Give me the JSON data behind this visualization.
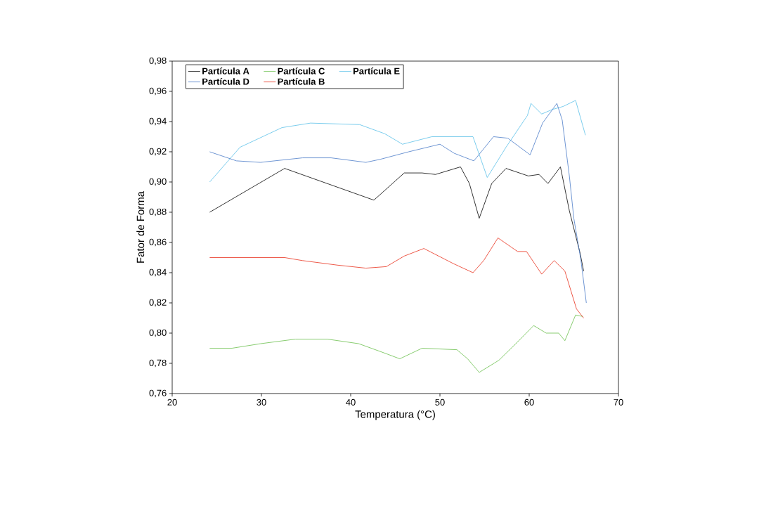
{
  "chart_data": {
    "type": "line",
    "xlabel": "Temperatura (°C)",
    "ylabel": "Fator de Forma",
    "xlim": [
      20,
      70
    ],
    "xticks": [
      20,
      30,
      40,
      50,
      60,
      70
    ],
    "ylim": [
      0.76,
      0.98
    ],
    "yticks": [
      {
        "value": 0.76,
        "label": "0,76"
      },
      {
        "value": 0.78,
        "label": "0,78"
      },
      {
        "value": 0.8,
        "label": "0,80"
      },
      {
        "value": 0.82,
        "label": "0,82"
      },
      {
        "value": 0.84,
        "label": "0,84"
      },
      {
        "value": 0.86,
        "label": "0,86"
      },
      {
        "value": 0.88,
        "label": "0,88"
      },
      {
        "value": 0.9,
        "label": "0,90"
      },
      {
        "value": 0.92,
        "label": "0,92"
      },
      {
        "value": 0.94,
        "label": "0,94"
      },
      {
        "value": 0.96,
        "label": "0,96"
      },
      {
        "value": 0.98,
        "label": "0,98"
      }
    ],
    "legend": "top left",
    "grid": false,
    "marker": "none",
    "line_style": "solid",
    "series": [
      {
        "name": "Partícula A",
        "color": "#000000",
        "x": [
          24.2,
          32.6,
          42.6,
          46,
          48,
          49.5,
          52.3,
          53.3,
          54.4,
          55.8,
          57.4,
          59.9,
          61.1,
          62.1,
          63.5,
          64.5,
          65.7,
          66.1
        ],
        "values": [
          0.88,
          0.909,
          0.888,
          0.906,
          0.906,
          0.905,
          0.91,
          0.899,
          0.876,
          0.899,
          0.909,
          0.904,
          0.905,
          0.899,
          0.91,
          0.881,
          0.853,
          0.841
        ]
      },
      {
        "name": "Partícula C",
        "color": "#6abf4b",
        "x": [
          24.2,
          26.7,
          29.9,
          33.8,
          37.4,
          40.9,
          43.7,
          45.5,
          48,
          51.9,
          53.1,
          54.4,
          56.6,
          58.5,
          60.5,
          61.9,
          63.3,
          64,
          65.2,
          66
        ],
        "values": [
          0.79,
          0.79,
          0.793,
          0.796,
          0.796,
          0.793,
          0.787,
          0.783,
          0.79,
          0.789,
          0.783,
          0.774,
          0.782,
          0.793,
          0.805,
          0.8,
          0.8,
          0.795,
          0.812,
          0.811
        ]
      },
      {
        "name": "Partícula E",
        "color": "#5bc0e8",
        "x": [
          24.2,
          27.6,
          32.3,
          35.5,
          41,
          43.8,
          45.8,
          49.1,
          53.7,
          55.3,
          57.4,
          59.8,
          60.2,
          61.4,
          62.6,
          63.8,
          65.2,
          66.3
        ],
        "values": [
          0.9,
          0.923,
          0.936,
          0.939,
          0.938,
          0.932,
          0.925,
          0.93,
          0.93,
          0.903,
          0.923,
          0.944,
          0.952,
          0.945,
          0.948,
          0.95,
          0.954,
          0.931
        ]
      },
      {
        "name": "Partícula D",
        "color": "#4a7bc8",
        "x": [
          24.2,
          27.2,
          29.9,
          34.6,
          37.8,
          41.7,
          43.3,
          46.5,
          50,
          51.6,
          53.8,
          56,
          57.6,
          60.1,
          61.5,
          63.1,
          63.7,
          64.5,
          65,
          65.8,
          66.4
        ],
        "values": [
          0.92,
          0.914,
          0.913,
          0.916,
          0.916,
          0.913,
          0.915,
          0.92,
          0.925,
          0.919,
          0.914,
          0.93,
          0.929,
          0.918,
          0.939,
          0.952,
          0.941,
          0.904,
          0.876,
          0.848,
          0.82
        ]
      },
      {
        "name": "Partícula B",
        "color": "#e8301c",
        "x": [
          24.2,
          32.6,
          34.6,
          38.5,
          41.7,
          44,
          46,
          48.2,
          51.5,
          53.7,
          54.9,
          56.5,
          58.7,
          59.7,
          61.4,
          62.8,
          64,
          65.3,
          66.1
        ],
        "values": [
          0.85,
          0.85,
          0.848,
          0.845,
          0.843,
          0.844,
          0.851,
          0.856,
          0.846,
          0.84,
          0.848,
          0.863,
          0.854,
          0.854,
          0.839,
          0.848,
          0.841,
          0.816,
          0.81
        ]
      }
    ]
  }
}
